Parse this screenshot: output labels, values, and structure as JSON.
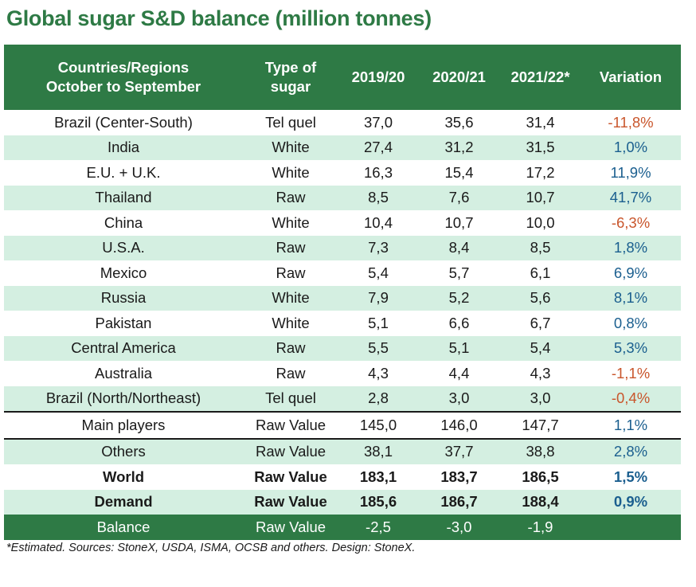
{
  "title": "Global sugar S&D balance (million tonnes)",
  "headers": {
    "col0": [
      "Countries/Regions",
      "October to September"
    ],
    "col1": [
      "Type of",
      "sugar"
    ],
    "y1": "2019/20",
    "y2": "2020/21",
    "y3": "2021/22*",
    "variation": "Variation"
  },
  "rows": [
    {
      "region": "Brazil (Center-South)",
      "type": "Tel quel",
      "y1": "37,0",
      "y2": "35,6",
      "y3": "31,4",
      "var": "-11,8%"
    },
    {
      "region": "India",
      "type": "White",
      "y1": "27,4",
      "y2": "31,2",
      "y3": "31,5",
      "var": "1,0%"
    },
    {
      "region": "E.U. + U.K.",
      "type": "White",
      "y1": "16,3",
      "y2": "15,4",
      "y3": "17,2",
      "var": "11,9%"
    },
    {
      "region": "Thailand",
      "type": "Raw",
      "y1": "8,5",
      "y2": "7,6",
      "y3": "10,7",
      "var": "41,7%"
    },
    {
      "region": "China",
      "type": "White",
      "y1": "10,4",
      "y2": "10,7",
      "y3": "10,0",
      "var": "-6,3%"
    },
    {
      "region": "U.S.A.",
      "type": "Raw",
      "y1": "7,3",
      "y2": "8,4",
      "y3": "8,5",
      "var": "1,8%"
    },
    {
      "region": "Mexico",
      "type": "Raw",
      "y1": "5,4",
      "y2": "5,7",
      "y3": "6,1",
      "var": "6,9%"
    },
    {
      "region": "Russia",
      "type": "White",
      "y1": "7,9",
      "y2": "5,2",
      "y3": "5,6",
      "var": "8,1%"
    },
    {
      "region": "Pakistan",
      "type": "White",
      "y1": "5,1",
      "y2": "6,6",
      "y3": "6,7",
      "var": "0,8%"
    },
    {
      "region": "Central America",
      "type": "Raw",
      "y1": "5,5",
      "y2": "5,1",
      "y3": "5,4",
      "var": "5,3%"
    },
    {
      "region": "Australia",
      "type": "Raw",
      "y1": "4,3",
      "y2": "4,4",
      "y3": "4,3",
      "var": "-1,1%"
    },
    {
      "region": "Brazil (North/Northeast)",
      "type": "Tel quel",
      "y1": "2,8",
      "y2": "3,0",
      "y3": "3,0",
      "var": "-0,4%"
    }
  ],
  "summary": [
    {
      "region": "Main players",
      "type": "Raw Value",
      "y1": "145,0",
      "y2": "146,0",
      "y3": "147,7",
      "var": "1,1%"
    },
    {
      "region": "Others",
      "type": "Raw Value",
      "y1": "38,1",
      "y2": "37,7",
      "y3": "38,8",
      "var": "2,8%"
    },
    {
      "region": "World",
      "type": "Raw Value",
      "y1": "183,1",
      "y2": "183,7",
      "y3": "186,5",
      "var": "1,5%"
    },
    {
      "region": "Demand",
      "type": "Raw Value",
      "y1": "185,6",
      "y2": "186,7",
      "y3": "188,4",
      "var": "0,9%"
    },
    {
      "region": "Balance",
      "type": "Raw Value",
      "y1": "-2,5",
      "y2": "-3,0",
      "y3": "-1,9",
      "var": ""
    }
  ],
  "footnote": "*Estimated. Sources: StoneX, USDA, ISMA, OCSB and others. Design: StoneX.",
  "colors": {
    "header_green": "#2e7a45",
    "alt_row": "#d4efe1",
    "negative": "#c9562c",
    "positive": "#1b5f8f"
  },
  "chart_data": {
    "type": "table",
    "title": "Global sugar S&D balance (million tonnes)",
    "columns": [
      "Countries/Regions October to September",
      "Type of sugar",
      "2019/20",
      "2020/21",
      "2021/22*",
      "Variation"
    ],
    "rows": [
      [
        "Brazil (Center-South)",
        "Tel quel",
        37.0,
        35.6,
        31.4,
        -11.8
      ],
      [
        "India",
        "White",
        27.4,
        31.2,
        31.5,
        1.0
      ],
      [
        "E.U. + U.K.",
        "White",
        16.3,
        15.4,
        17.2,
        11.9
      ],
      [
        "Thailand",
        "Raw",
        8.5,
        7.6,
        10.7,
        41.7
      ],
      [
        "China",
        "White",
        10.4,
        10.7,
        10.0,
        -6.3
      ],
      [
        "U.S.A.",
        "Raw",
        7.3,
        8.4,
        8.5,
        1.8
      ],
      [
        "Mexico",
        "Raw",
        5.4,
        5.7,
        6.1,
        6.9
      ],
      [
        "Russia",
        "White",
        7.9,
        5.2,
        5.6,
        8.1
      ],
      [
        "Pakistan",
        "White",
        5.1,
        6.6,
        6.7,
        0.8
      ],
      [
        "Central America",
        "Raw",
        5.5,
        5.1,
        5.4,
        5.3
      ],
      [
        "Australia",
        "Raw",
        4.3,
        4.4,
        4.3,
        -1.1
      ],
      [
        "Brazil (North/Northeast)",
        "Tel quel",
        2.8,
        3.0,
        3.0,
        -0.4
      ],
      [
        "Main players",
        "Raw Value",
        145.0,
        146.0,
        147.7,
        1.1
      ],
      [
        "Others",
        "Raw Value",
        38.1,
        37.7,
        38.8,
        2.8
      ],
      [
        "World",
        "Raw Value",
        183.1,
        183.7,
        186.5,
        1.5
      ],
      [
        "Demand",
        "Raw Value",
        185.6,
        186.7,
        188.4,
        0.9
      ],
      [
        "Balance",
        "Raw Value",
        -2.5,
        -3.0,
        -1.9,
        null
      ]
    ]
  }
}
